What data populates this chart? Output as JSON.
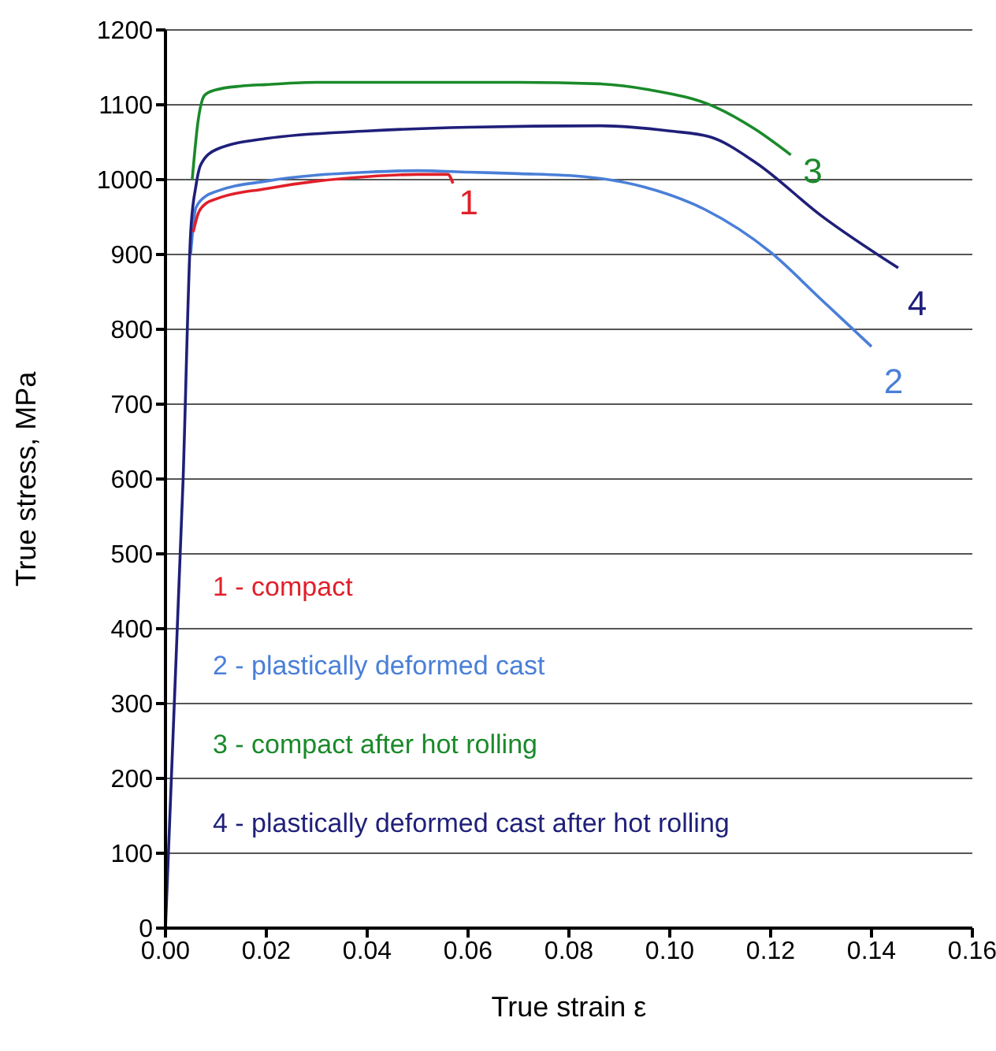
{
  "chart_data": {
    "type": "line",
    "xlabel": "True strain ε",
    "ylabel": "True stress, MPa",
    "xlim": [
      0,
      0.16
    ],
    "xticks": [
      {
        "value": 0,
        "label": "0.00"
      },
      {
        "value": 0.02,
        "label": "0.02"
      },
      {
        "value": 0.04,
        "label": "0.04"
      },
      {
        "value": 0.06,
        "label": "0.06"
      },
      {
        "value": 0.08,
        "label": "0.08"
      },
      {
        "value": 0.1,
        "label": "0.10"
      },
      {
        "value": 0.12,
        "label": "0.12"
      },
      {
        "value": 0.14,
        "label": "0.14"
      },
      {
        "value": 0.16,
        "label": "0.16"
      }
    ],
    "ylim": [
      0,
      1200
    ],
    "yticks": [
      0,
      100,
      200,
      300,
      400,
      500,
      600,
      700,
      800,
      900,
      1000,
      1100,
      1200
    ],
    "grid": "y",
    "legend": "left",
    "line_style": "solid",
    "series": [
      {
        "name": "1 - compact",
        "color": "#e0202a",
        "x": [
          0.0055,
          0.0065,
          0.008,
          0.01,
          0.02,
          0.03,
          0.04,
          0.05,
          0.056,
          0.057
        ],
        "values": [
          930,
          955,
          968,
          974,
          988,
          998,
          1004,
          1007,
          1007,
          995
        ]
      },
      {
        "name": "2 - plastically deformed cast",
        "color": "#4a7fd8",
        "x": [
          0.005,
          0.006,
          0.008,
          0.01,
          0.02,
          0.03,
          0.04,
          0.05,
          0.06,
          0.07,
          0.083,
          0.095,
          0.107,
          0.12,
          0.13,
          0.14
        ],
        "values": [
          900,
          962,
          978,
          984,
          998,
          1006,
          1010,
          1012,
          1010,
          1008,
          1004,
          990,
          960,
          903,
          840,
          777
        ]
      },
      {
        "name": "3 - compact after hot rolling",
        "color": "#1a8a2a",
        "x": [
          0.0053,
          0.0065,
          0.0078,
          0.01,
          0.015,
          0.02,
          0.03,
          0.05,
          0.07,
          0.086,
          0.096,
          0.109,
          0.117,
          0.124
        ],
        "values": [
          1000,
          1080,
          1113,
          1120,
          1125,
          1127,
          1130,
          1130,
          1130,
          1128,
          1120,
          1097,
          1067,
          1033
        ]
      },
      {
        "name": "4 - plastically deformed cast after hot rolling",
        "color": "#1f1f7a",
        "x": [
          0,
          0.0035,
          0.005,
          0.006,
          0.007,
          0.01,
          0.02,
          0.04,
          0.06,
          0.086,
          0.1,
          0.108,
          0.117,
          0.13,
          0.1453
        ],
        "values": [
          0,
          600,
          930,
          990,
          1020,
          1040,
          1055,
          1065,
          1070,
          1072,
          1065,
          1057,
          1023,
          952,
          882
        ]
      }
    ],
    "annotations": [
      "1",
      "2",
      "3",
      "4"
    ]
  }
}
